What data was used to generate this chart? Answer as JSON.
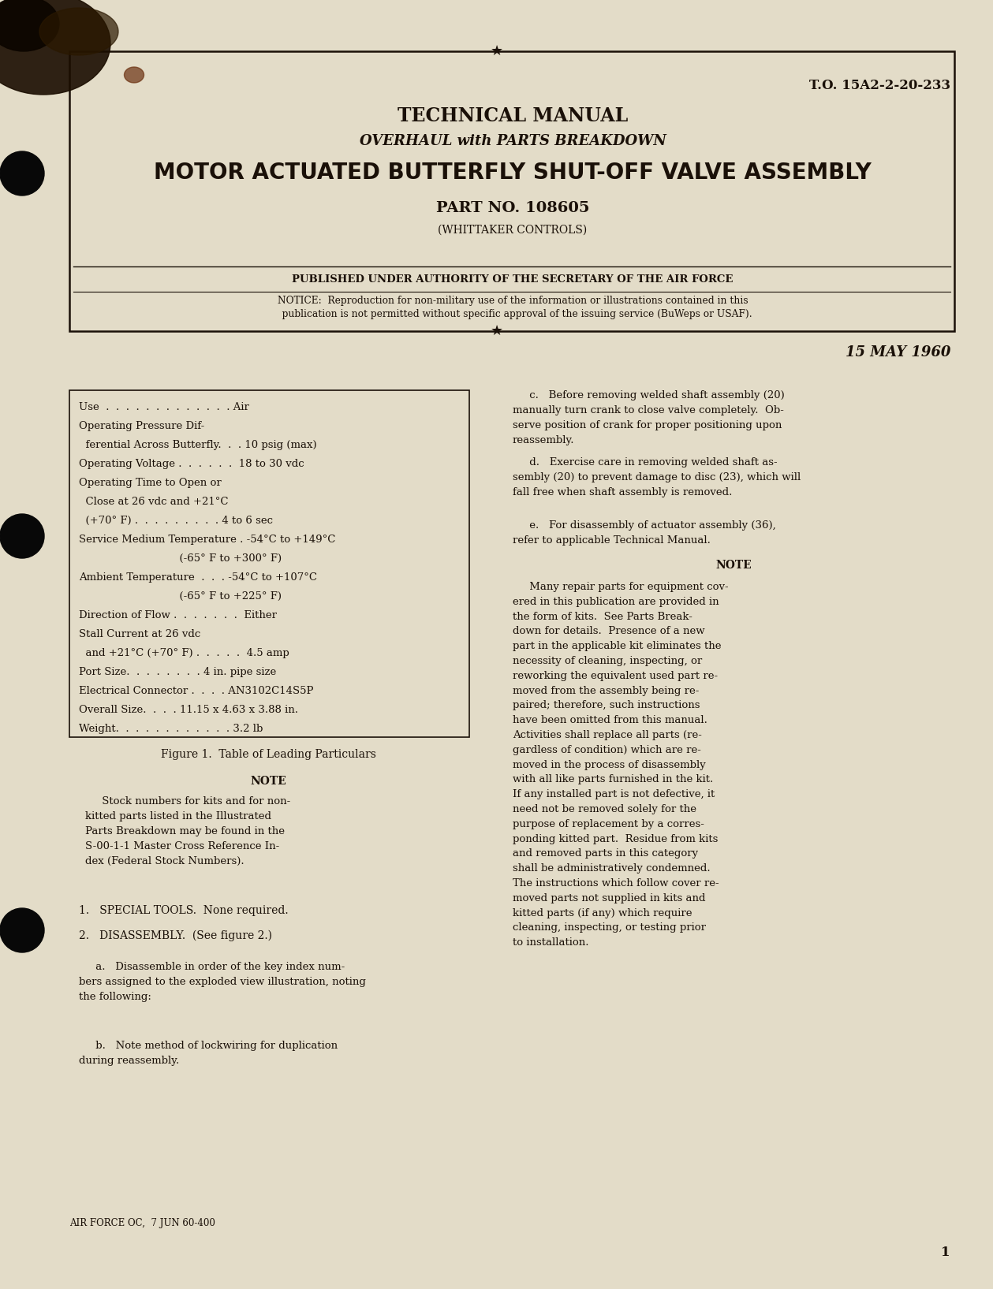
{
  "bg_color": "#e3dcc8",
  "text_color": "#1a1008",
  "to_number": "T.O. 15A2-2-20-233",
  "tech_manual": "TECHNICAL MANUAL",
  "overhaul_line": "OVERHAUL with PARTS BREAKDOWN",
  "main_title": "MOTOR ACTUATED BUTTERFLY SHUT-OFF VALVE ASSEMBLY",
  "part_no": "PART NO. 108605",
  "whittaker": "(WHITTAKER CONTROLS)",
  "published": "PUBLISHED UNDER AUTHORITY OF THE SECRETARY OF THE AIR FORCE",
  "notice_line1": "NOTICE:  Reproduction for non-military use of the information or illustrations contained in this",
  "notice_line2": "   publication is not permitted without specific approval of the issuing service (BuWeps or USAF).",
  "date": "15 MAY 1960",
  "table_lines": [
    "Use  .  .  .  .  .  .  .  .  .  .  .  .  . Air",
    "Operating Pressure Dif-",
    "  ferential Across Butterfly.  .  . 10 psig (max)",
    "Operating Voltage .  .  .  .  .  .  18 to 30 vdc",
    "Operating Time to Open or",
    "  Close at 26 vdc and +21°C",
    "  (+70° F) .  .  .  .  .  .  .  .  . 4 to 6 sec",
    "Service Medium Temperature . -54°C to +149°C",
    "                              (-65° F to +300° F)",
    "Ambient Temperature  .  .  . -54°C to +107°C",
    "                              (-65° F to +225° F)",
    "Direction of Flow .  .  .  .  .  .  .  Either",
    "Stall Current at 26 vdc",
    "  and +21°C (+70° F) .  .  .  .  .  4.5 amp",
    "Port Size.  .  .  .  .  .  .  . 4 in. pipe size",
    "Electrical Connector .  .  .  . AN3102C14S5P",
    "Overall Size.  .  .  . 11.15 x 4.63 x 3.88 in.",
    "Weight.  .  .  .  .  .  .  .  .  .  .  . 3.2 lb"
  ],
  "fig_caption": "Figure 1.  Table of Leading Particulars",
  "note_title_left": "NOTE",
  "note_text_left": "     Stock numbers for kits and for non-\nkitted parts listed in the Illustrated\nParts Breakdown may be found in the\nS-00-1-1 Master Cross Reference In-\ndex (Federal Stock Numbers).",
  "special_tools": "1.   SPECIAL TOOLS.  None required.",
  "disassembly_hdr": "2.   DISASSEMBLY.  (See figure 2.)",
  "para_a": "     a.   Disassemble in order of the key index num-\nbers assigned to the exploded view illustration, noting\nthe following:",
  "para_b": "     b.   Note method of lockwiring for duplication\nduring reassembly.",
  "footer": "AIR FORCE OC,  7 JUN 60-400",
  "page_num": "1",
  "right_c": "     c.   Before removing welded shaft assembly (20)\nmanually turn crank to close valve completely.  Ob-\nserve position of crank for proper positioning upon\nreassembly.",
  "right_d": "     d.   Exercise care in removing welded shaft as-\nsembly (20) to prevent damage to disc (23), which will\nfall free when shaft assembly is removed.",
  "right_e": "     e.   For disassembly of actuator assembly (36),\nrefer to applicable Technical Manual.",
  "right_note_title": "NOTE",
  "right_note_text": "     Many repair parts for equipment cov-\nered in this publication are provided in\nthe form of kits.  See Parts Break-\ndown for details.  Presence of a new\npart in the applicable kit eliminates the\nnecessity of cleaning, inspecting, or\nreworking the equivalent used part re-\nmoved from the assembly being re-\npaired; therefore, such instructions\nhave been omitted from this manual.\nActivities shall replace all parts (re-\ngardless of condition) which are re-\nmoved in the process of disassembly\nwith all like parts furnished in the kit.\nIf any installed part is not defective, it\nneed not be removed solely for the\npurpose of replacement by a corres-\nponding kitted part.  Residue from kits\nand removed parts in this category\nshall be administratively condemned.\nThe instructions which follow cover re-\nmoved parts not supplied in kits and\nkitted parts (if any) which require\ncleaning, inspecting, or testing prior\nto installation."
}
